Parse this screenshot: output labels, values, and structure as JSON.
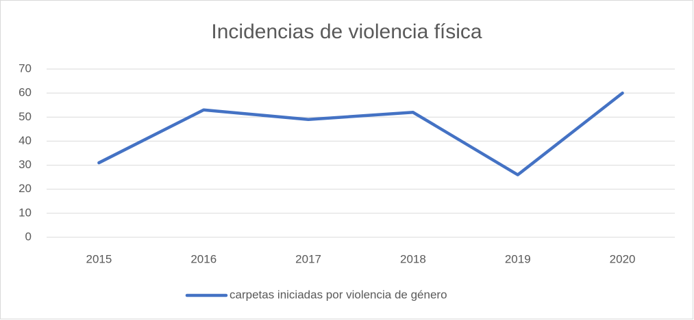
{
  "chart_data": {
    "type": "line",
    "title": "Incidencias de violencia física",
    "categories": [
      "2015",
      "2016",
      "2017",
      "2018",
      "2019",
      "2020"
    ],
    "series": [
      {
        "name": "carpetas iniciadas por violencia de género",
        "color": "#4472c4",
        "values": [
          31,
          53,
          49,
          52,
          26,
          60
        ]
      }
    ],
    "ylim": [
      0,
      70
    ],
    "yticks": [
      0,
      10,
      20,
      30,
      40,
      50,
      60,
      70
    ],
    "grid": true,
    "legend": "bottom"
  }
}
